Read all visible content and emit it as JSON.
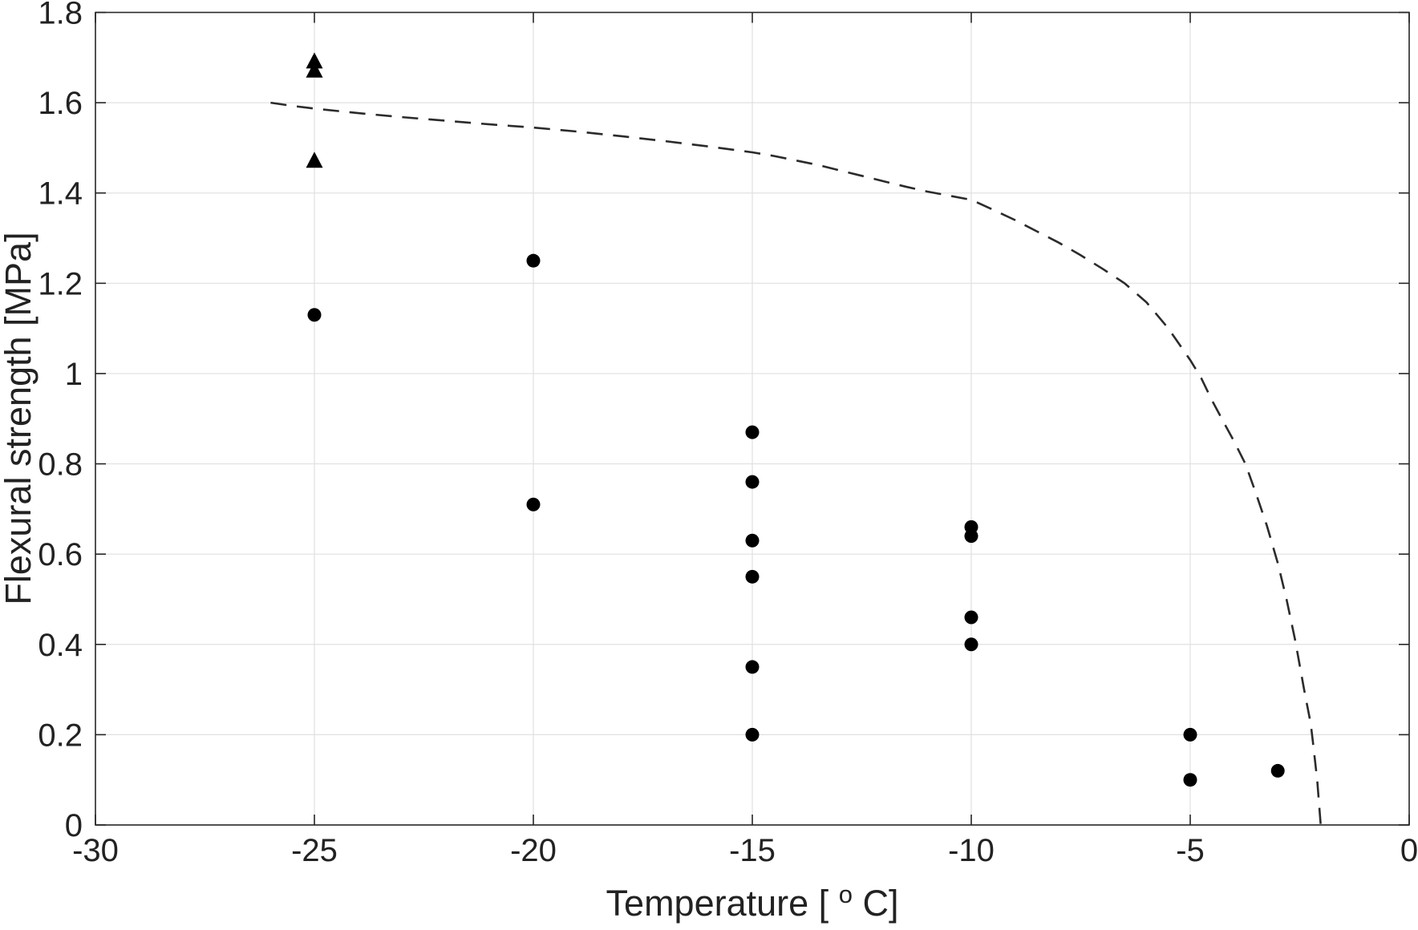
{
  "figure": {
    "background": "#ffffff",
    "title": ""
  },
  "chart_data": {
    "type": "scatter",
    "title": "",
    "xlabel": "Temperature [°C]",
    "xlabel_parts": {
      "prefix": "Temperature [",
      "superscript": "o",
      "suffix": "C]"
    },
    "ylabel": "Flexural strength [MPa]",
    "xlim": [
      -30,
      0
    ],
    "ylim": [
      0,
      1.8
    ],
    "xticks": [
      -30,
      -25,
      -20,
      -15,
      -10,
      -5,
      0
    ],
    "xtick_labels": [
      "-30",
      "-25",
      "-20",
      "-15",
      "-10",
      "-5",
      "0"
    ],
    "yticks": [
      0,
      0.2,
      0.4,
      0.6,
      0.8,
      1,
      1.2,
      1.4,
      1.6,
      1.8
    ],
    "ytick_labels": [
      "0",
      "0.2",
      "0.4",
      "0.6",
      "0.8",
      "1",
      "1.2",
      "1.4",
      "1.6",
      "1.8"
    ],
    "grid": true,
    "legend_position": "none",
    "colors": {
      "axis": "#262626",
      "grid": "#e0e0e0",
      "marker": "#000000",
      "curve": "#2b2b2b"
    },
    "series": [
      {
        "name": "flexural-strength-circles",
        "type": "scatter",
        "marker": "circle",
        "marker_size": 8.5,
        "points": [
          [
            -25,
            1.13
          ],
          [
            -20,
            1.25
          ],
          [
            -20,
            0.71
          ],
          [
            -15,
            0.87
          ],
          [
            -15,
            0.76
          ],
          [
            -15,
            0.63
          ],
          [
            -15,
            0.55
          ],
          [
            -15,
            0.35
          ],
          [
            -15,
            0.2
          ],
          [
            -10,
            0.66
          ],
          [
            -10,
            0.64
          ],
          [
            -10,
            0.46
          ],
          [
            -10,
            0.4
          ],
          [
            -5,
            0.2
          ],
          [
            -5,
            0.1
          ],
          [
            -3,
            0.12
          ]
        ]
      },
      {
        "name": "flexural-strength-triangles",
        "type": "scatter",
        "marker": "triangle-up",
        "marker_size": 11,
        "points": [
          [
            -25,
            1.69
          ],
          [
            -25,
            1.67
          ],
          [
            -25,
            1.47
          ]
        ]
      },
      {
        "name": "model-fit-curve",
        "type": "line",
        "linestyle": "dashed",
        "line_width": 2.6,
        "points": [
          [
            -26.0,
            1.6
          ],
          [
            -25.5,
            1.593
          ],
          [
            -25.0,
            1.587
          ],
          [
            -24.0,
            1.577
          ],
          [
            -23.0,
            1.568
          ],
          [
            -22.0,
            1.56
          ],
          [
            -21.0,
            1.552
          ],
          [
            -20.0,
            1.545
          ],
          [
            -19.0,
            1.536
          ],
          [
            -18.0,
            1.526
          ],
          [
            -17.0,
            1.515
          ],
          [
            -16.0,
            1.503
          ],
          [
            -15.0,
            1.49
          ],
          [
            -14.5,
            1.482
          ],
          [
            -14.0,
            1.472
          ],
          [
            -13.5,
            1.462
          ],
          [
            -13.0,
            1.45
          ],
          [
            -12.5,
            1.438
          ],
          [
            -12.0,
            1.426
          ],
          [
            -11.5,
            1.414
          ],
          [
            -11.0,
            1.403
          ],
          [
            -10.5,
            1.394
          ],
          [
            -10.0,
            1.385
          ],
          [
            -9.5,
            1.363
          ],
          [
            -9.0,
            1.34
          ],
          [
            -8.5,
            1.315
          ],
          [
            -8.0,
            1.29
          ],
          [
            -7.5,
            1.262
          ],
          [
            -7.0,
            1.232
          ],
          [
            -6.5,
            1.2
          ],
          [
            -6.0,
            1.158
          ],
          [
            -5.5,
            1.1
          ],
          [
            -5.0,
            1.03
          ],
          [
            -4.75,
            0.99
          ],
          [
            -4.5,
            0.94
          ],
          [
            -4.25,
            0.895
          ],
          [
            -4.0,
            0.85
          ],
          [
            -3.74,
            0.8
          ],
          [
            -3.5,
            0.735
          ],
          [
            -3.25,
            0.663
          ],
          [
            -3.0,
            0.58
          ],
          [
            -2.8,
            0.5
          ],
          [
            -2.6,
            0.408
          ],
          [
            -2.4,
            0.3
          ],
          [
            -2.25,
            0.225
          ],
          [
            -2.2,
            0.185
          ],
          [
            -2.1,
            0.1
          ],
          [
            -2.02,
            0.0
          ]
        ]
      }
    ]
  },
  "layout_note": ""
}
